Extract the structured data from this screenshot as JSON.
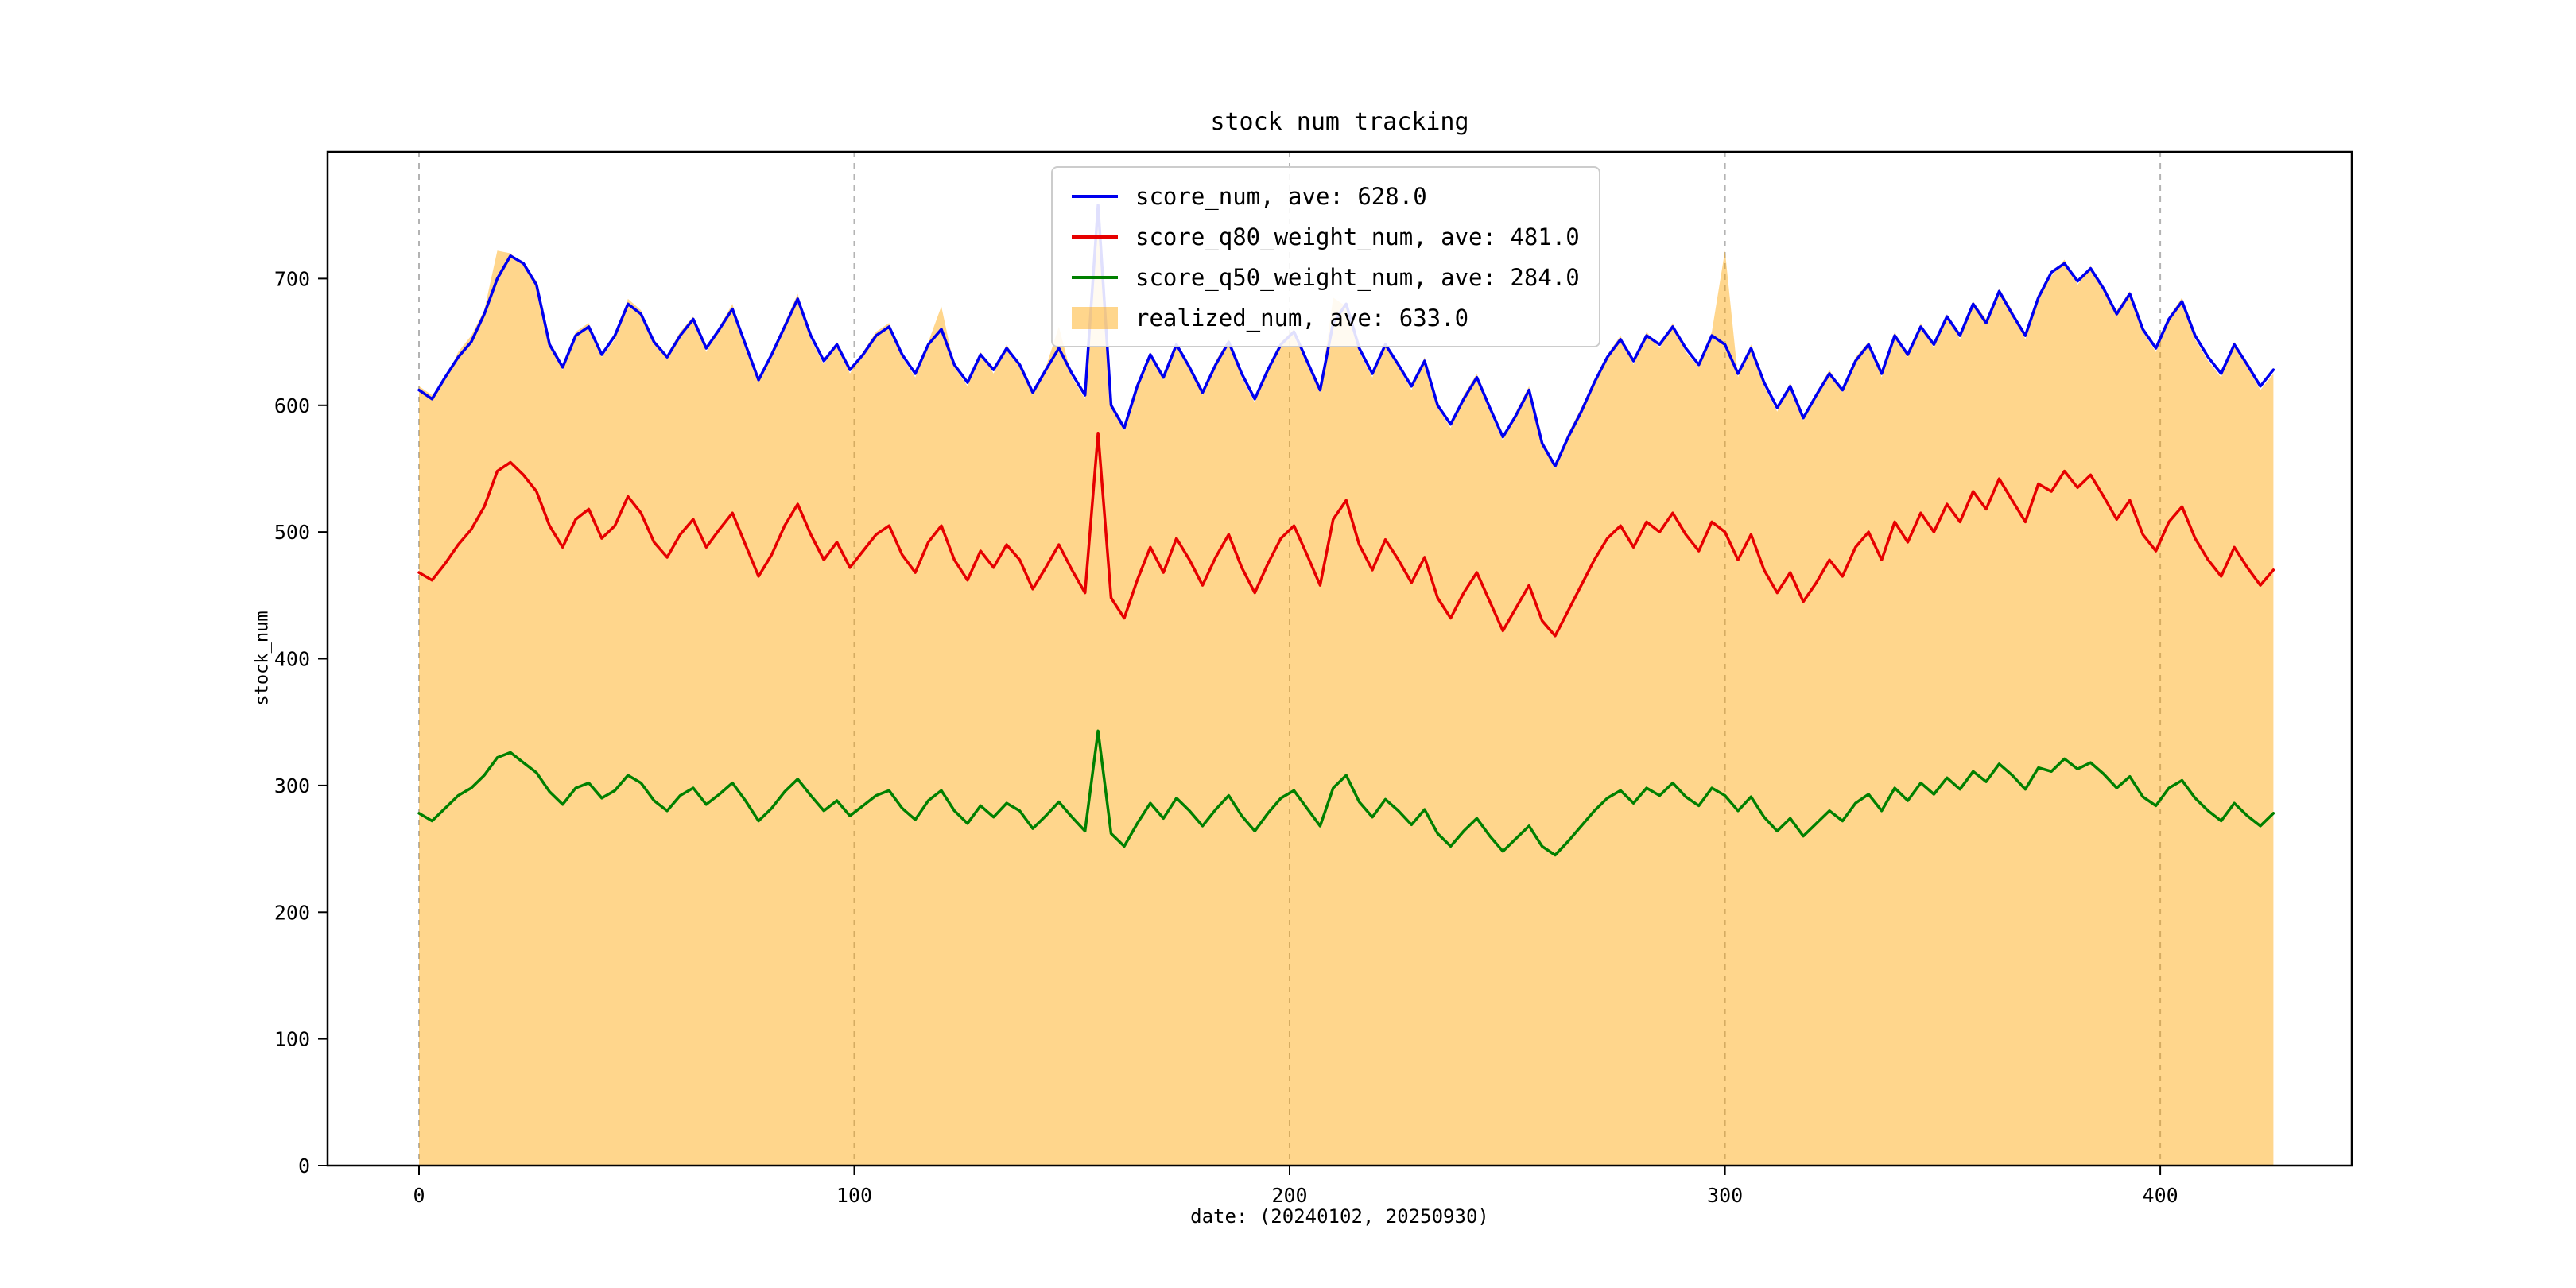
{
  "figure": {
    "background": "#ffffff"
  },
  "chart_data": {
    "type": "line",
    "title": "stock num tracking",
    "xlabel": "date: (20240102, 20250930)",
    "ylabel": "stock_num",
    "xlim": [
      -21,
      444
    ],
    "ylim": [
      0,
      800
    ],
    "xticks": [
      0,
      100,
      200,
      300,
      400
    ],
    "yticks": [
      0,
      100,
      200,
      300,
      400,
      500,
      600,
      700
    ],
    "grid": {
      "axis": "x",
      "style": "dashed",
      "color": "#b3b3b3"
    },
    "legend_position": "upper center",
    "x_start": 0,
    "x_step": 3,
    "series": [
      {
        "name": "score_num",
        "label": "score_num, ave: 628.0",
        "type": "line",
        "color": "#0000ee",
        "values": [
          612,
          605,
          622,
          638,
          650,
          672,
          700,
          718,
          712,
          695,
          648,
          630,
          655,
          662,
          640,
          655,
          680,
          672,
          650,
          638,
          655,
          668,
          645,
          660,
          676,
          648,
          620,
          640,
          662,
          684,
          655,
          635,
          648,
          628,
          640,
          655,
          662,
          640,
          625,
          648,
          660,
          632,
          618,
          640,
          628,
          645,
          632,
          610,
          628,
          645,
          625,
          608,
          758,
          600,
          582,
          615,
          640,
          622,
          648,
          630,
          610,
          632,
          650,
          625,
          605,
          628,
          648,
          658,
          635,
          612,
          665,
          680,
          645,
          625,
          648,
          632,
          615,
          635,
          600,
          585,
          605,
          622,
          598,
          575,
          592,
          612,
          570,
          552,
          575,
          595,
          618,
          638,
          652,
          635,
          655,
          648,
          662,
          645,
          632,
          655,
          648,
          625,
          645,
          618,
          598,
          615,
          590,
          608,
          625,
          612,
          635,
          648,
          625,
          655,
          640,
          662,
          648,
          670,
          655,
          680,
          665,
          690,
          672,
          655,
          685,
          705,
          712,
          698,
          708,
          692,
          672,
          688,
          660,
          645,
          668,
          682,
          655,
          638,
          625,
          648,
          632,
          615,
          628
        ]
      },
      {
        "name": "score_q80_weight_num",
        "label": "score_q80_weight_num, ave: 481.0",
        "type": "line",
        "color": "#e60000",
        "values": [
          468,
          462,
          475,
          490,
          502,
          520,
          548,
          555,
          545,
          532,
          505,
          488,
          510,
          518,
          495,
          505,
          528,
          515,
          492,
          480,
          498,
          510,
          488,
          502,
          515,
          490,
          465,
          482,
          505,
          522,
          498,
          478,
          492,
          472,
          485,
          498,
          505,
          482,
          468,
          492,
          505,
          478,
          462,
          485,
          472,
          490,
          478,
          455,
          472,
          490,
          470,
          452,
          578,
          448,
          432,
          462,
          488,
          468,
          495,
          478,
          458,
          480,
          498,
          472,
          452,
          475,
          495,
          505,
          482,
          458,
          510,
          525,
          490,
          470,
          494,
          478,
          460,
          480,
          448,
          432,
          452,
          468,
          445,
          422,
          440,
          458,
          430,
          418,
          438,
          458,
          478,
          495,
          505,
          488,
          508,
          500,
          515,
          498,
          485,
          508,
          500,
          478,
          498,
          470,
          452,
          468,
          445,
          460,
          478,
          465,
          488,
          500,
          478,
          508,
          492,
          515,
          500,
          522,
          508,
          532,
          518,
          542,
          525,
          508,
          538,
          532,
          548,
          535,
          545,
          528,
          510,
          525,
          498,
          485,
          508,
          520,
          495,
          478,
          465,
          488,
          472,
          458,
          470
        ]
      },
      {
        "name": "score_q50_weight_num",
        "label": "score_q50_weight_num, ave: 284.0",
        "type": "line",
        "color": "#008000",
        "values": [
          278,
          272,
          282,
          292,
          298,
          308,
          322,
          326,
          318,
          310,
          295,
          285,
          298,
          302,
          290,
          296,
          308,
          302,
          288,
          280,
          292,
          298,
          285,
          293,
          302,
          288,
          272,
          282,
          295,
          305,
          292,
          280,
          288,
          276,
          284,
          292,
          296,
          282,
          273,
          288,
          296,
          280,
          270,
          284,
          275,
          286,
          280,
          266,
          276,
          287,
          275,
          264,
          343,
          262,
          252,
          270,
          286,
          274,
          290,
          280,
          268,
          281,
          292,
          276,
          264,
          278,
          290,
          296,
          282,
          268,
          298,
          308,
          287,
          275,
          289,
          280,
          269,
          281,
          262,
          252,
          264,
          274,
          260,
          248,
          258,
          268,
          252,
          245,
          256,
          268,
          280,
          290,
          296,
          286,
          298,
          292,
          302,
          291,
          284,
          298,
          292,
          280,
          291,
          275,
          264,
          274,
          260,
          270,
          280,
          272,
          286,
          293,
          280,
          298,
          288,
          302,
          293,
          306,
          297,
          311,
          303,
          317,
          308,
          297,
          314,
          311,
          321,
          313,
          318,
          309,
          298,
          307,
          291,
          284,
          298,
          304,
          290,
          280,
          272,
          286,
          276,
          268,
          278
        ]
      },
      {
        "name": "realized_num",
        "label": "realized_num, ave: 633.0",
        "type": "area",
        "color": "#ffa500",
        "fill_opacity": 0.45,
        "values": [
          615,
          608,
          620,
          642,
          655,
          675,
          722,
          720,
          710,
          698,
          650,
          628,
          658,
          665,
          638,
          652,
          684,
          675,
          648,
          640,
          658,
          670,
          642,
          662,
          680,
          645,
          618,
          642,
          665,
          688,
          652,
          632,
          650,
          625,
          642,
          658,
          665,
          638,
          622,
          650,
          678,
          630,
          615,
          642,
          625,
          648,
          630,
          608,
          630,
          662,
          622,
          605,
          752,
          598,
          580,
          618,
          642,
          620,
          650,
          628,
          608,
          635,
          652,
          622,
          602,
          630,
          650,
          660,
          632,
          610,
          685,
          678,
          642,
          622,
          650,
          630,
          612,
          638,
          598,
          582,
          608,
          625,
          595,
          572,
          595,
          615,
          568,
          550,
          578,
          598,
          620,
          640,
          655,
          632,
          658,
          645,
          665,
          642,
          630,
          658,
          722,
          622,
          648,
          615,
          595,
          618,
          588,
          610,
          628,
          610,
          638,
          650,
          622,
          658,
          638,
          665,
          645,
          672,
          652,
          682,
          668,
          692,
          675,
          652,
          688,
          702,
          715,
          695,
          710,
          690,
          675,
          690,
          658,
          642,
          670,
          685,
          652,
          635,
          622,
          650,
          630,
          612,
          625
        ]
      }
    ]
  }
}
